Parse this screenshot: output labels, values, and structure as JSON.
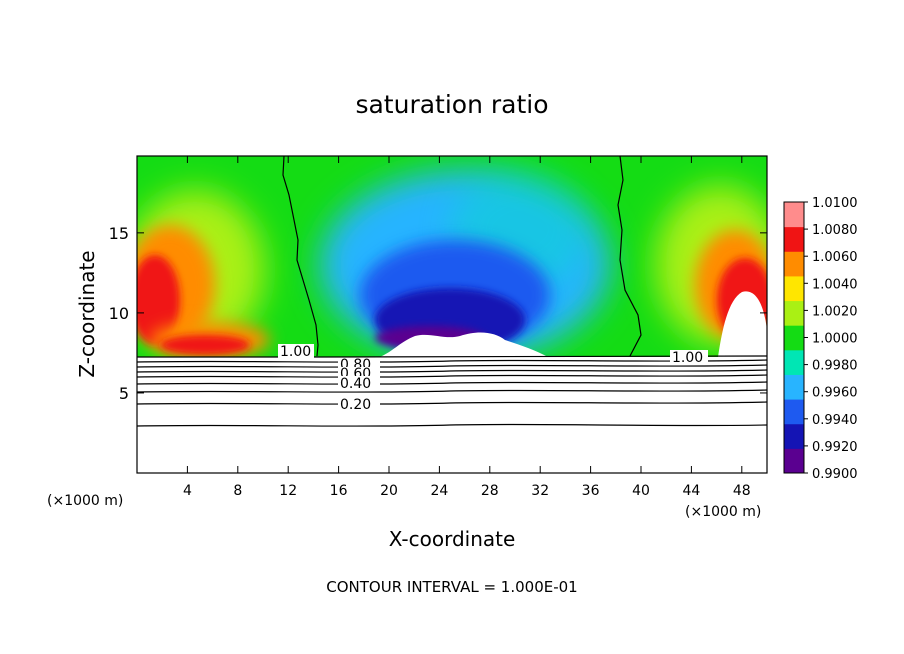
{
  "chart_data": {
    "type": "heatmap",
    "title": "saturation ratio",
    "xlabel": "X-coordinate",
    "ylabel": "Z-coordinate",
    "x_unit_left": "(×1000 m)",
    "x_unit_right": "(×1000 m)",
    "xlim": [
      0,
      50
    ],
    "ylim": [
      0,
      19.8
    ],
    "x_ticks": [
      4,
      8,
      12,
      16,
      20,
      24,
      28,
      32,
      36,
      40,
      44,
      48
    ],
    "x_tick_labels": [
      "4",
      "8",
      "12",
      "16",
      "20",
      "24",
      "28",
      "32",
      "36",
      "40",
      "44",
      "48"
    ],
    "y_ticks": [
      5,
      10,
      15
    ],
    "y_tick_labels": [
      "5",
      "10",
      "15"
    ],
    "colorbar": {
      "min": 0.99,
      "max": 1.01,
      "tick_values": [
        0.99,
        0.992,
        0.994,
        0.996,
        0.998,
        1.0,
        1.002,
        1.004,
        1.006,
        1.008,
        1.01
      ],
      "tick_labels": [
        "0.9900",
        "0.9920",
        "0.9940",
        "0.9960",
        "0.9980",
        "1.0000",
        "1.0020",
        "1.0040",
        "1.0060",
        "1.0080",
        "1.0100"
      ],
      "colors": [
        "#5a0090",
        "#1414b4",
        "#1e5af0",
        "#28b4ff",
        "#00e6b4",
        "#14dc14",
        "#aaf014",
        "#ffe600",
        "#ff8c00",
        "#f01414",
        "#ff8c8c"
      ]
    },
    "field_regions": [
      {
        "x": [
          0,
          5
        ],
        "z": [
          9,
          16
        ],
        "value": 1.006
      },
      {
        "x": [
          5,
          11
        ],
        "z": [
          7.5,
          10
        ],
        "value": 1.006
      },
      {
        "x": [
          4,
          10
        ],
        "z": [
          10,
          15
        ],
        "value": 1.002
      },
      {
        "x": [
          12,
          38
        ],
        "z": [
          16,
          19.8
        ],
        "value": 1.0
      },
      {
        "x": [
          16,
          36
        ],
        "z": [
          10,
          16
        ],
        "value": 0.996
      },
      {
        "x": [
          20,
          32
        ],
        "z": [
          8,
          12
        ],
        "value": 0.993
      },
      {
        "x": [
          40,
          46
        ],
        "z": [
          10,
          16
        ],
        "value": 1.002
      },
      {
        "x": [
          44,
          49
        ],
        "z": [
          8,
          14
        ],
        "value": 1.006
      }
    ],
    "contour_interval_label": "CONTOUR INTERVAL = 1.000E-01",
    "contour_labels": [
      {
        "text": "1.00",
        "x": 12.1,
        "z": 7.5
      },
      {
        "text": "1.00",
        "x": 42.8,
        "z": 7.3
      },
      {
        "text": "0.80",
        "x": 17.5,
        "z": 6.9
      },
      {
        "text": "0.60",
        "x": 17.5,
        "z": 6.5
      },
      {
        "text": "0.40",
        "x": 17.5,
        "z": 5.7
      },
      {
        "text": "0.20",
        "x": 17.5,
        "z": 4.3
      }
    ]
  }
}
